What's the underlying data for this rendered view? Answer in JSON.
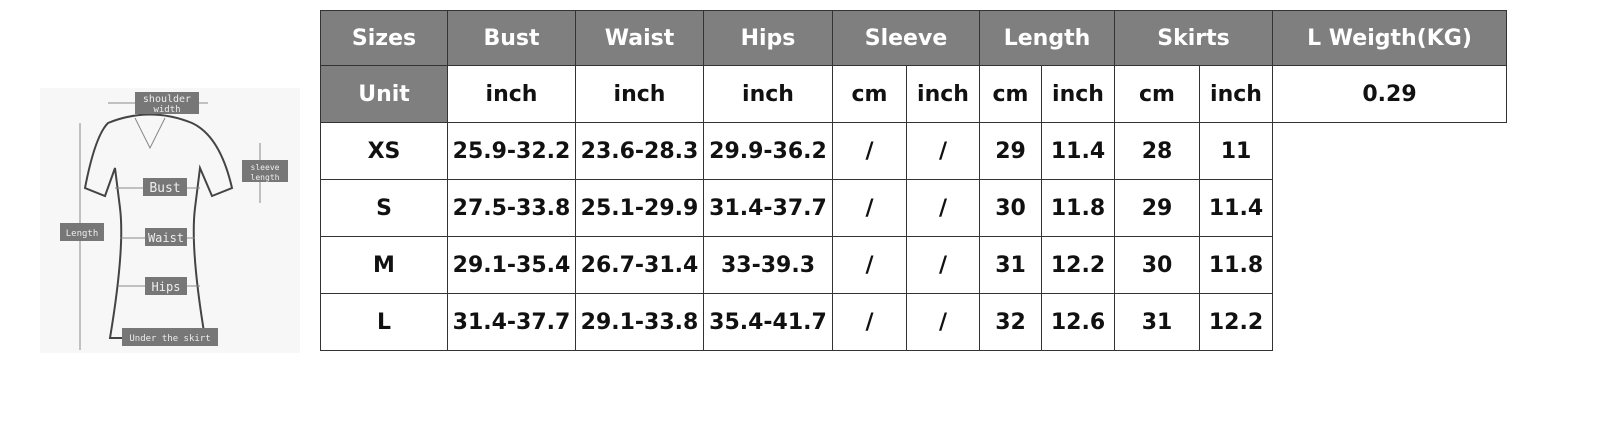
{
  "diagram_labels": {
    "shoulder": "shoulder",
    "width": "width",
    "sleeve": "sleeve",
    "length_small": "length",
    "bust": "Bust",
    "waist": "Waist",
    "hips": "Hips",
    "length": "Length",
    "under_skirt": "Under the skirt"
  },
  "table": {
    "headers": [
      "Sizes",
      "Bust",
      "Waist",
      "Hips",
      "Sleeve",
      "Length",
      "Skirts",
      "L Weigth(KG)"
    ],
    "unit_label": "Unit",
    "units": [
      "inch",
      "inch",
      "inch",
      "cm",
      "inch",
      "cm",
      "inch",
      "cm",
      "inch"
    ],
    "rows": [
      {
        "size": "XS",
        "cells": [
          "25.9-32.2",
          "23.6-28.3",
          "29.9-36.2",
          "/",
          "/",
          "29",
          "11.4",
          "28",
          "11"
        ]
      },
      {
        "size": "S",
        "cells": [
          "27.5-33.8",
          "25.1-29.9",
          "31.4-37.7",
          "/",
          "/",
          "30",
          "11.8",
          "29",
          "11.4"
        ]
      },
      {
        "size": "M",
        "cells": [
          "29.1-35.4",
          "26.7-31.4",
          "33-39.3",
          "/",
          "/",
          "31",
          "12.2",
          "30",
          "11.8"
        ]
      },
      {
        "size": "L",
        "cells": [
          "31.4-37.7",
          "29.1-33.8",
          "35.4-41.7",
          "/",
          "/",
          "32",
          "12.6",
          "31",
          "12.2"
        ]
      }
    ],
    "weight": "0.29"
  },
  "colors": {
    "header_bg": "#7f7f7f",
    "header_text": "#ffffff",
    "border": "#333333"
  }
}
